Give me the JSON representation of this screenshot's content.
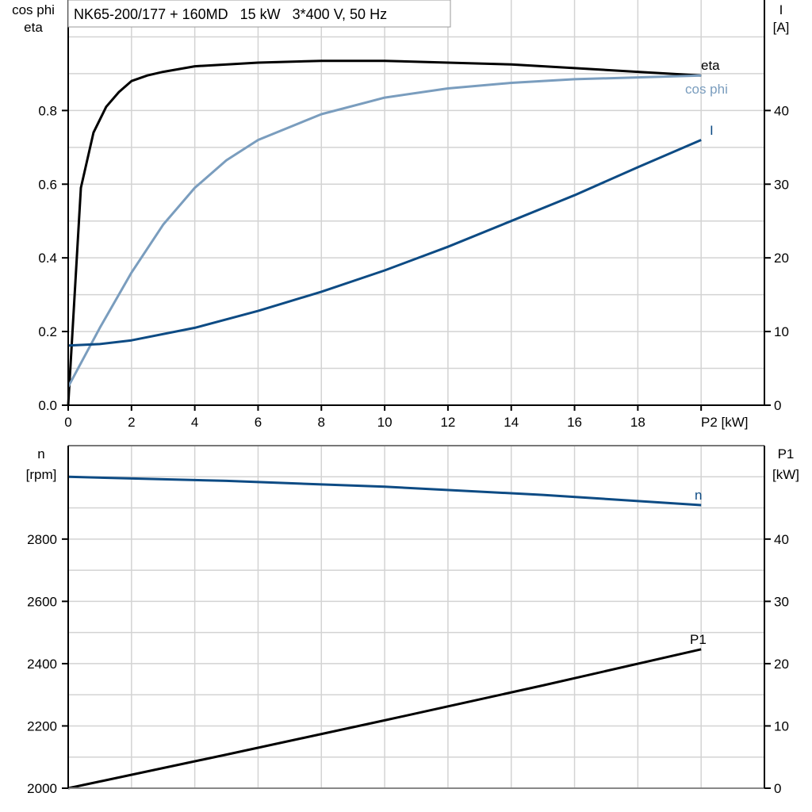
{
  "chart_data": [
    {
      "type": "line",
      "title": "NK65-200/177 + 160MD   15 kW   3*400 V, 50 Hz",
      "xlabel": "P2 [kW]",
      "xlim": [
        0,
        22
      ],
      "xticks": [
        0,
        2,
        4,
        6,
        8,
        10,
        12,
        14,
        16,
        18
      ],
      "ylabel_left": [
        "cos phi",
        "eta"
      ],
      "ylim_left": [
        0,
        1.1
      ],
      "yticks_left": [
        "0.0",
        "0.2",
        "0.4",
        "0.6",
        "0.8"
      ],
      "ylabel_right": [
        "I",
        "[A]"
      ],
      "ylim_right": [
        0,
        55
      ],
      "yticks_right": [
        "0",
        "10",
        "20",
        "30",
        "40"
      ],
      "grid": true,
      "series": [
        {
          "name": "eta",
          "axis": "left",
          "color": "#000000",
          "x": [
            0,
            0.4,
            0.8,
            1.2,
            1.6,
            2,
            2.5,
            3,
            4,
            6,
            8,
            10,
            12,
            14,
            16,
            18,
            20
          ],
          "y": [
            0.0,
            0.59,
            0.74,
            0.81,
            0.85,
            0.88,
            0.895,
            0.905,
            0.92,
            0.93,
            0.935,
            0.935,
            0.93,
            0.925,
            0.915,
            0.905,
            0.895
          ]
        },
        {
          "name": "cos phi",
          "axis": "left",
          "color": "#7a9dbe",
          "x": [
            0,
            1,
            2,
            3,
            4,
            5,
            6,
            8,
            10,
            12,
            14,
            16,
            18,
            20
          ],
          "y": [
            0.05,
            0.21,
            0.36,
            0.49,
            0.59,
            0.665,
            0.72,
            0.79,
            0.835,
            0.86,
            0.875,
            0.885,
            0.89,
            0.895
          ]
        },
        {
          "name": "I",
          "axis": "right",
          "color": "#0d4b84",
          "x": [
            0,
            1,
            2,
            4,
            6,
            8,
            10,
            12,
            14,
            16,
            18,
            20
          ],
          "y": [
            8.1,
            8.3,
            8.8,
            10.5,
            12.8,
            15.4,
            18.3,
            21.5,
            25.0,
            28.5,
            32.3,
            36.0
          ]
        }
      ]
    },
    {
      "type": "line",
      "xlim": [
        0,
        22
      ],
      "ylabel_left": [
        "n",
        "[rpm]"
      ],
      "ylim_left": [
        2000,
        3100
      ],
      "yticks_left": [
        "2000",
        "2200",
        "2400",
        "2600",
        "2800"
      ],
      "ylabel_right": [
        "P1",
        "[kW]"
      ],
      "ylim_right": [
        0,
        55
      ],
      "yticks_right": [
        "0",
        "10",
        "20",
        "30",
        "40"
      ],
      "grid": true,
      "series": [
        {
          "name": "n",
          "axis": "left",
          "color": "#0d4b84",
          "x": [
            0,
            5,
            10,
            15,
            20
          ],
          "y": [
            3000,
            2987,
            2968,
            2942,
            2909
          ]
        },
        {
          "name": "P1",
          "axis": "right",
          "color": "#000000",
          "x": [
            0,
            5,
            10,
            15,
            20
          ],
          "y": [
            0,
            5.4,
            10.9,
            16.5,
            22.3
          ]
        }
      ]
    }
  ]
}
